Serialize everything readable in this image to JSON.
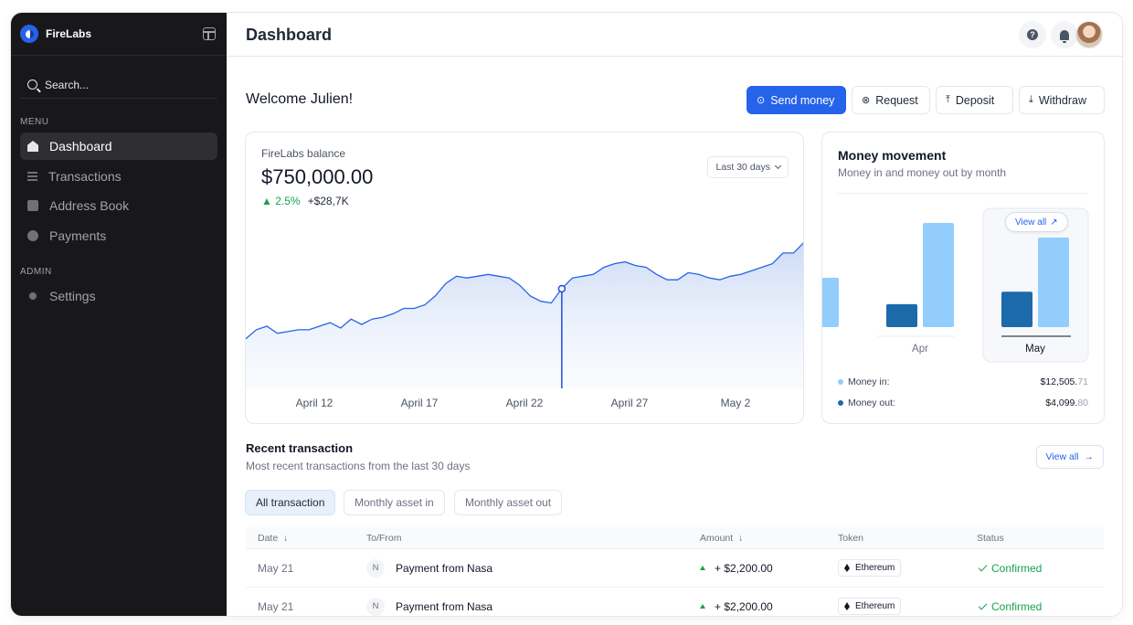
{
  "app": {
    "name": "FireLabs"
  },
  "sidebar": {
    "search_placeholder": "Search...",
    "menu_label": "MENU",
    "admin_label": "ADMIN",
    "items": [
      {
        "label": "Dashboard",
        "icon": "home-icon",
        "active": true
      },
      {
        "label": "Transactions",
        "icon": "list-icon"
      },
      {
        "label": "Address Book",
        "icon": "book-icon"
      },
      {
        "label": "Payments",
        "icon": "payment-icon"
      }
    ],
    "admin_items": [
      {
        "label": "Settings",
        "icon": "gear-icon"
      }
    ]
  },
  "header": {
    "title": "Dashboard"
  },
  "welcome": "Welcome Julien!",
  "actions": {
    "send": "Send money",
    "request": "Request",
    "deposit": "Deposit",
    "withdraw": "Withdraw"
  },
  "balance": {
    "label": "FireLabs balance",
    "value": "$750,000.00",
    "change_pct": "2.5%",
    "change_abs": "+$28,7K",
    "range": "Last 30 days",
    "accent": "#2563eb"
  },
  "chart_data": [
    {
      "type": "area",
      "title": "",
      "x_ticks": [
        "April 12",
        "April 17",
        "April 22",
        "April 27",
        "May 2"
      ],
      "series": [
        {
          "values": [
            38,
            43,
            45,
            41,
            42,
            43,
            43,
            45,
            47,
            44,
            49,
            46,
            49,
            50,
            52,
            55,
            55,
            57,
            62,
            69,
            73,
            72,
            73,
            74,
            73,
            72,
            68,
            62,
            59,
            58,
            66,
            72,
            73,
            74,
            78,
            80,
            81,
            79,
            78,
            74,
            71,
            71,
            75,
            74,
            72,
            71,
            73,
            74,
            76,
            78,
            80,
            86,
            86,
            92
          ]
        }
      ],
      "highlight_index": 30
    },
    {
      "type": "bar",
      "title": "Money movement",
      "categories": [
        "Apr",
        "May"
      ],
      "series": [
        {
          "name": "Money in",
          "values": [
            50,
            43
          ],
          "color": "#93cdfb"
        },
        {
          "name": "Money out",
          "values": [
            11,
            17
          ],
          "color": "#1d6aaa"
        }
      ]
    }
  ],
  "money_movement": {
    "title": "Money movement",
    "subtitle": "Money in and money out by month",
    "view_all": "View all",
    "money_in_label": "Money in:",
    "money_in_main": "$12,505.",
    "money_in_cents": "71",
    "money_out_label": "Money out:",
    "money_out_main": "$4,099.",
    "money_out_cents": "80",
    "months": [
      "Apr",
      "May"
    ]
  },
  "transactions": {
    "title": "Recent transaction",
    "subtitle": "Most recent transactions from the last 30 days",
    "view_all": "View all",
    "filters": [
      "All transaction",
      "Monthly asset in",
      "Monthly asset out"
    ],
    "columns": {
      "date": "Date",
      "to_from": "To/From",
      "amount": "Amount",
      "token": "Token",
      "status": "Status"
    },
    "rows": [
      {
        "date": "May 21",
        "initial": "N",
        "name": "Payment from Nasa",
        "amount": "+ $2,200.00",
        "token": "Ethereum",
        "status": "Confirmed"
      },
      {
        "date": "May 21",
        "initial": "N",
        "name": "Payment from Nasa",
        "amount": "+ $2,200.00",
        "token": "Ethereum",
        "status": "Confirmed"
      }
    ]
  }
}
